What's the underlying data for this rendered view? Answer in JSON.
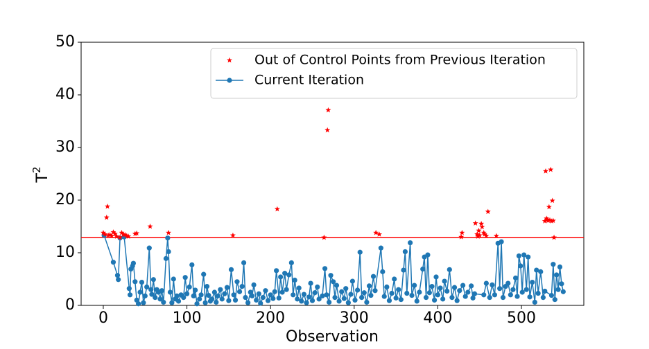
{
  "chart_data": {
    "type": "line",
    "xlabel": "Observation",
    "ylabel": "T",
    "ylabel_superscript": "2",
    "xlim": [
      -26.5,
      574.6
    ],
    "ylim": [
      0,
      50
    ],
    "xticks": [
      0,
      100,
      200,
      300,
      400,
      500
    ],
    "yticks": [
      0,
      10,
      20,
      30,
      40,
      50
    ],
    "legend": "upper right",
    "hline": {
      "value": 12.9,
      "color": "#ff0000"
    },
    "series": [
      {
        "name": "Out of Control Points from Previous Iteration",
        "color": "#ff0000",
        "marker": "star",
        "linestyle": "none",
        "x": [
          0,
          2,
          4,
          5,
          6,
          8,
          10,
          12,
          14,
          16,
          20,
          22,
          24,
          26,
          28,
          30,
          38,
          40,
          56,
          78,
          155,
          208,
          264,
          268,
          269,
          326,
          330,
          428,
          429,
          445,
          447,
          448,
          449,
          450,
          452,
          453,
          455,
          456,
          458,
          460,
          470,
          528,
          529,
          530,
          531,
          532,
          533,
          534,
          535,
          536,
          537,
          538,
          539
        ],
        "values": [
          13.8,
          13.5,
          16.7,
          18.8,
          13.3,
          13.4,
          13.2,
          13.9,
          13.6,
          13.1,
          12.9,
          13.8,
          13.5,
          13.4,
          13.2,
          13.1,
          13.6,
          13.7,
          15.0,
          13.8,
          13.3,
          18.3,
          12.9,
          33.3,
          37.1,
          13.8,
          13.5,
          13.0,
          13.8,
          15.6,
          13.5,
          13.1,
          14.2,
          13.3,
          15.5,
          14.9,
          13.8,
          13.5,
          13.2,
          17.8,
          13.2,
          16.0,
          25.5,
          16.5,
          16.3,
          16.1,
          18.7,
          16.2,
          25.8,
          16.0,
          19.9,
          16.1,
          12.9
        ]
      },
      {
        "name": "Current Iteration",
        "color": "#1f77b4",
        "marker": "circle",
        "linestyle": "solid",
        "x": [
          1,
          12,
          17,
          18,
          20,
          25,
          31,
          32,
          33,
          35,
          36,
          38,
          40,
          42,
          44,
          46,
          48,
          50,
          52,
          55,
          57,
          58,
          60,
          62,
          64,
          66,
          68,
          70,
          72,
          75,
          77,
          78,
          80,
          82,
          84,
          86,
          88,
          90,
          93,
          96,
          98,
          100,
          103,
          106,
          108,
          110,
          112,
          115,
          117,
          120,
          122,
          124,
          126,
          128,
          130,
          133,
          135,
          137,
          140,
          142,
          145,
          148,
          150,
          153,
          156,
          158,
          160,
          163,
          166,
          168,
          170,
          173,
          176,
          178,
          180,
          183,
          186,
          188,
          191,
          194,
          197,
          200,
          203,
          205,
          207,
          210,
          212,
          214,
          217,
          219,
          222,
          225,
          227,
          229,
          232,
          234,
          237,
          240,
          243,
          246,
          248,
          250,
          253,
          256,
          258,
          262,
          265,
          267,
          270,
          272,
          275,
          277,
          279,
          282,
          285,
          288,
          290,
          293,
          296,
          298,
          301,
          304,
          307,
          309,
          312,
          315,
          318,
          320,
          323,
          325,
          332,
          334,
          336,
          339,
          342,
          345,
          348,
          350,
          353,
          356,
          359,
          361,
          363,
          367,
          369,
          372,
          375,
          378,
          382,
          384,
          386,
          388,
          390,
          393,
          396,
          398,
          400,
          403,
          406,
          408,
          411,
          414,
          417,
          420,
          423,
          426,
          430,
          433,
          436,
          440,
          442,
          444,
          455,
          458,
          462,
          465,
          468,
          472,
          474,
          476,
          478,
          481,
          484,
          487,
          490,
          493,
          495,
          497,
          499,
          501,
          503,
          506,
          508,
          510,
          513,
          516,
          518,
          520,
          523,
          526,
          528,
          536,
          538,
          540,
          542,
          544,
          546,
          548,
          550
        ],
        "values": [
          13.3,
          8.2,
          5.7,
          4.9,
          12.8,
          13.0,
          3.2,
          2.0,
          6.9,
          7.5,
          8.0,
          4.5,
          1.0,
          0.3,
          2.5,
          4.4,
          0.5,
          1.8,
          3.5,
          10.9,
          3.0,
          2.1,
          4.9,
          1.5,
          3.0,
          2.5,
          1.2,
          2.8,
          0.6,
          8.9,
          12.8,
          10.2,
          2.5,
          0.5,
          5.0,
          1.2,
          1.8,
          0.8,
          2.0,
          1.5,
          5.3,
          2.2,
          3.5,
          7.7,
          1.8,
          2.9,
          0.3,
          1.2,
          2.0,
          5.9,
          0.5,
          3.6,
          1.9,
          0.8,
          1.2,
          2.5,
          0.6,
          1.8,
          3.0,
          1.2,
          2.2,
          3.4,
          0.9,
          6.8,
          2.0,
          1.0,
          4.5,
          2.6,
          3.6,
          8.1,
          1.5,
          0.5,
          2.5,
          1.8,
          3.9,
          1.0,
          2.2,
          0.4,
          1.5,
          2.8,
          0.9,
          2.0,
          1.3,
          2.6,
          6.6,
          1.4,
          5.4,
          2.5,
          6.1,
          3.0,
          5.8,
          8.1,
          2.0,
          4.8,
          1.2,
          3.3,
          0.8,
          2.1,
          0.5,
          1.6,
          4.2,
          0.9,
          2.4,
          3.5,
          1.2,
          1.8,
          7.0,
          2.0,
          0.6,
          5.7,
          4.5,
          1.5,
          3.8,
          0.8,
          2.6,
          1.3,
          3.2,
          0.5,
          2.1,
          4.6,
          1.0,
          2.9,
          10.1,
          1.5,
          2.4,
          0.6,
          3.7,
          1.9,
          5.5,
          2.8,
          10.9,
          6.4,
          1.7,
          3.5,
          0.9,
          2.3,
          5.0,
          1.4,
          3.0,
          1.1,
          6.7,
          10.2,
          2.3,
          11.9,
          1.9,
          3.8,
          0.8,
          2.5,
          6.9,
          9.2,
          1.5,
          9.6,
          2.4,
          3.6,
          1.0,
          5.4,
          2.0,
          3.3,
          1.2,
          4.6,
          2.7,
          6.8,
          1.5,
          3.4,
          0.9,
          2.8,
          3.8,
          1.7,
          2.5,
          3.7,
          1.4,
          2.2,
          2.0,
          4.2,
          1.5,
          3.9,
          2.0,
          11.8,
          3.2,
          12.1,
          1.5,
          3.6,
          4.2,
          2.0,
          3.0,
          5.2,
          1.7,
          9.4,
          7.5,
          2.5,
          9.6,
          3.0,
          9.2,
          1.6,
          4.4,
          0.6,
          6.7,
          2.3,
          6.4,
          1.5,
          2.7,
          1.9,
          7.8,
          1.1,
          5.8,
          3.0,
          7.3,
          4.1,
          2.6
        ]
      }
    ]
  }
}
